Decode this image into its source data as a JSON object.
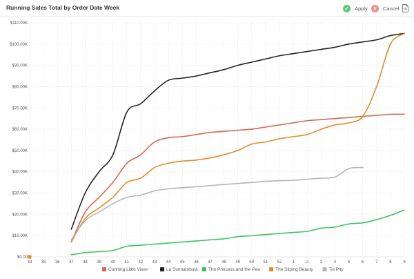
{
  "header": {
    "title": "Running Sales Total by Order Date Week",
    "apply_label": "Apply",
    "cancel_label": "Cancel"
  },
  "icons": {
    "apply": "check-icon",
    "cancel": "close-icon",
    "export": "document-icon"
  },
  "chart_data": {
    "type": "line",
    "title": "",
    "xlabel": "",
    "ylabel": "",
    "x": [
      "34",
      "35",
      "36",
      "37",
      "38",
      "39",
      "40",
      "41",
      "42",
      "43",
      "44",
      "45",
      "46",
      "47",
      "48",
      "49",
      "50",
      "51",
      "52",
      "1",
      "2",
      "3",
      "4",
      "5",
      "6",
      "7",
      "8",
      "9"
    ],
    "ylim": [
      0,
      110000
    ],
    "yticks": [
      0,
      10000,
      20000,
      30000,
      40000,
      50000,
      60000,
      70000,
      80000,
      90000,
      100000,
      110000
    ],
    "ytick_labels": [
      "$0.00",
      "$10.00K",
      "$20.00K",
      "$30.00K",
      "$40.00K",
      "$50.00K",
      "$60.00K",
      "$70.00K",
      "$80.00K",
      "$90.00K",
      "$100.00K",
      "$110.00K"
    ],
    "grid": true,
    "legend_position": "bottom",
    "series": [
      {
        "name": "Cunning Little Vixen",
        "color": "#d2694e",
        "values": [
          null,
          null,
          null,
          7000,
          21000,
          28000,
          35000,
          44000,
          48000,
          54000,
          56000,
          56500,
          57500,
          58500,
          59000,
          59500,
          60000,
          61000,
          62000,
          63000,
          64000,
          64500,
          65000,
          65500,
          66000,
          66500,
          67000,
          67000
        ]
      },
      {
        "name": "La Sonnambula",
        "color": "#222222",
        "values": [
          null,
          null,
          null,
          13000,
          30000,
          40000,
          48000,
          68000,
          72000,
          78000,
          83000,
          84000,
          85000,
          86500,
          88000,
          90000,
          91500,
          93000,
          94500,
          95500,
          96500,
          97500,
          98500,
          100000,
          101000,
          102000,
          104000,
          105000
        ]
      },
      {
        "name": "The Princess and the Pea",
        "color": "#3cc45a",
        "values": [
          null,
          null,
          null,
          1000,
          2000,
          2500,
          3000,
          5000,
          5500,
          6000,
          6500,
          7000,
          7500,
          8000,
          8500,
          9500,
          10000,
          10500,
          11000,
          11500,
          12000,
          13500,
          14000,
          15500,
          16000,
          17500,
          19500,
          22000
        ]
      },
      {
        "name": "The Sliping Beauty",
        "color": "#e28a2a",
        "values": [
          0,
          null,
          null,
          7000,
          18000,
          23000,
          28000,
          35000,
          37000,
          42000,
          44000,
          45000,
          45500,
          46500,
          48000,
          50000,
          53000,
          54000,
          55500,
          56500,
          57500,
          60000,
          62000,
          63000,
          66000,
          80000,
          100000,
          105000
        ]
      },
      {
        "name": "Tis Pity",
        "color": "#b4b4b4",
        "values": [
          null,
          null,
          null,
          8000,
          17000,
          21000,
          25000,
          28000,
          29000,
          31000,
          32000,
          32500,
          33000,
          33500,
          34000,
          34500,
          35000,
          35500,
          35800,
          36000,
          36500,
          37000,
          37500,
          41500,
          42000,
          null,
          null,
          null
        ]
      }
    ]
  }
}
